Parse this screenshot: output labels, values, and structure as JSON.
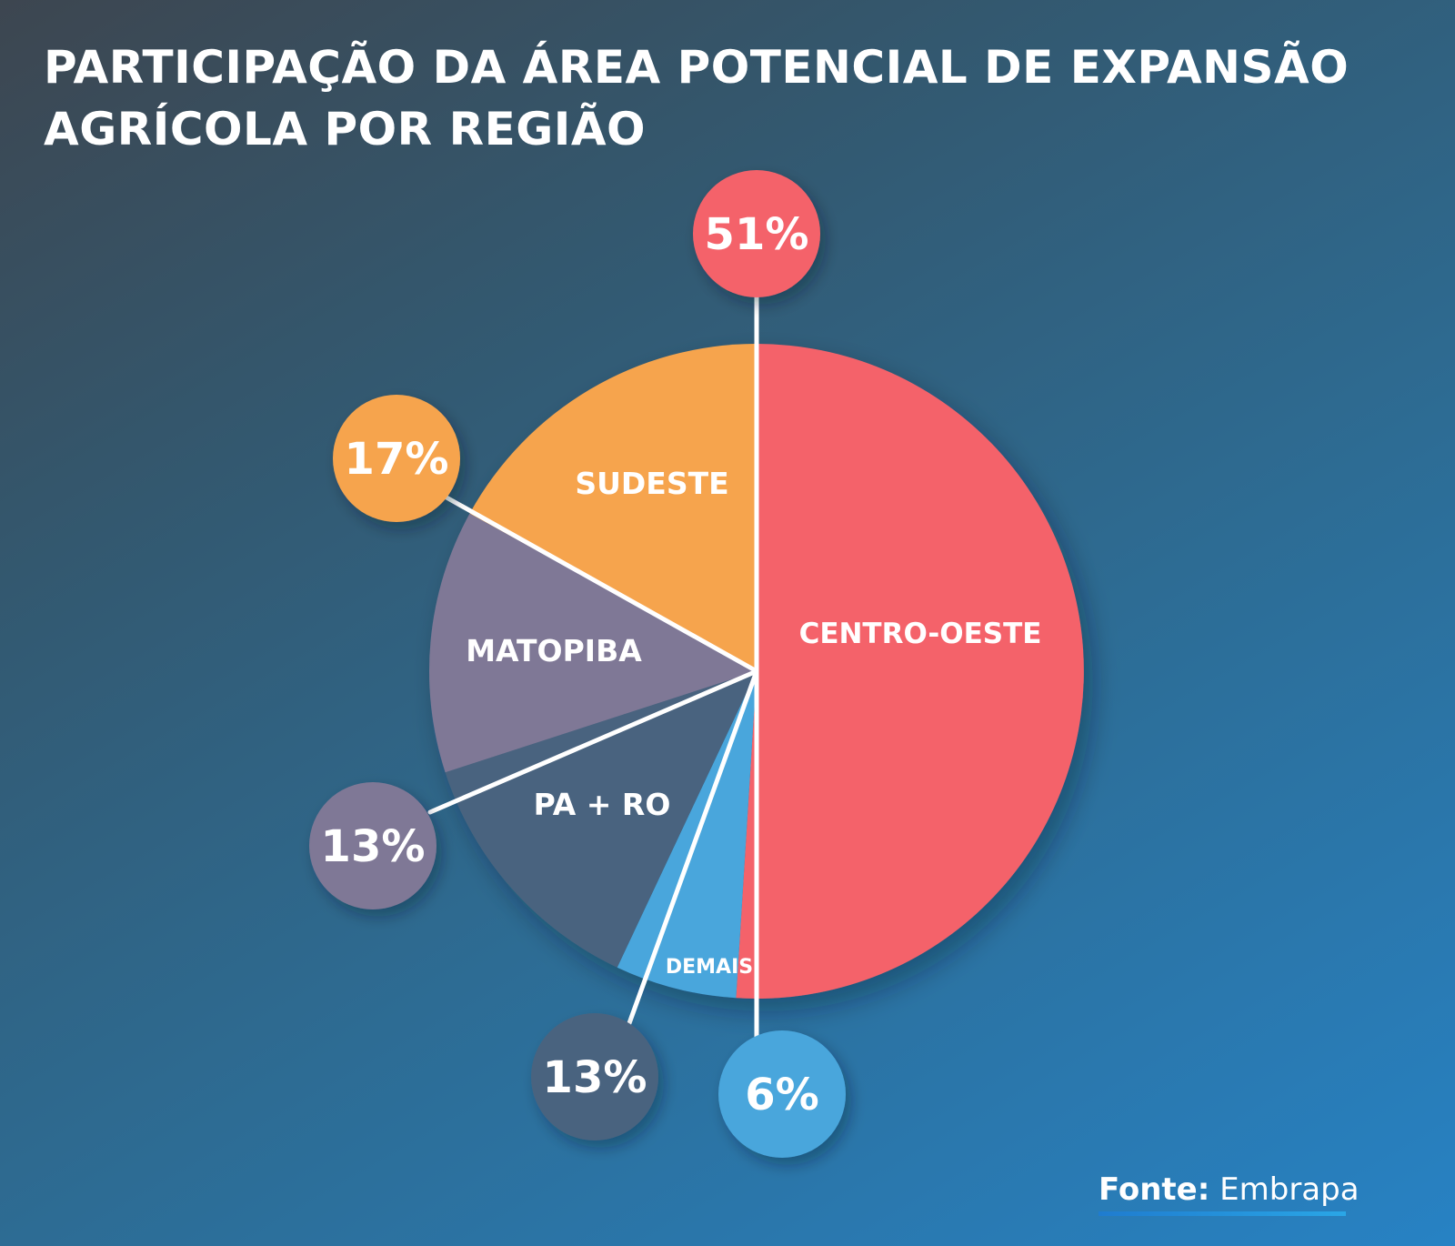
{
  "title_lines": [
    "PARTICIPAÇÃO DA ÁREA POTENCIAL DE EXPANSÃO",
    "AGRÍCOLA POR REGIÃO"
  ],
  "source": {
    "label": "Fonte:",
    "value": "Embrapa"
  },
  "chart_data": {
    "type": "pie",
    "title": "PARTICIPAÇÃO DA ÁREA POTENCIAL DE EXPANSÃO AGRÍCOLA POR REGIÃO",
    "slices": [
      {
        "label": "CENTRO-OESTE",
        "value": 51,
        "value_label": "51%",
        "color": "#f4626a"
      },
      {
        "label": "DEMAIS",
        "value": 6,
        "value_label": "6%",
        "color": "#4aa6dc"
      },
      {
        "label": "PA + RO",
        "value": 13,
        "value_label": "13%",
        "color": "#4a647f"
      },
      {
        "label": "MATOPIBA",
        "value": 13,
        "value_label": "13%",
        "color": "#7f7896"
      },
      {
        "label": "SUDESTE",
        "value": 17,
        "value_label": "17%",
        "color": "#f6a44e"
      }
    ],
    "legend": "none"
  }
}
